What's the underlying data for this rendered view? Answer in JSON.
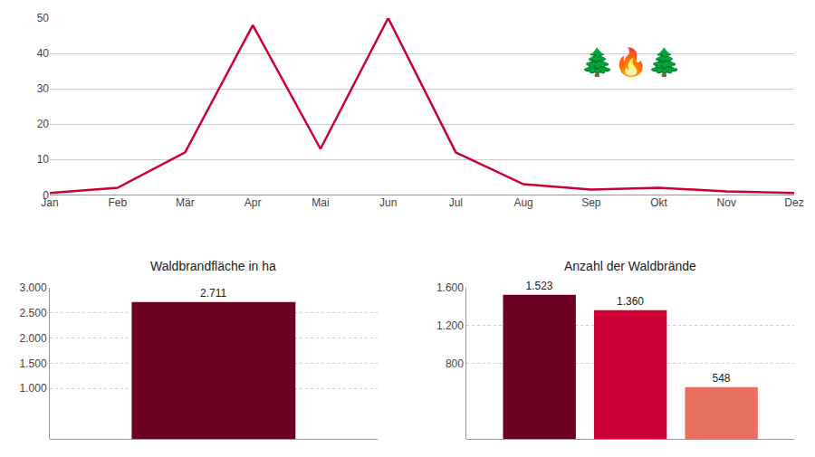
{
  "chart_data": [
    {
      "type": "line",
      "categories": [
        "Jan",
        "Feb",
        "Mär",
        "Apr",
        "Mai",
        "Jun",
        "Jul",
        "Aug",
        "Sep",
        "Okt",
        "Nov",
        "Dez"
      ],
      "values": [
        0.5,
        2,
        12,
        48,
        13,
        50,
        12,
        3,
        1.5,
        2,
        1,
        0.5
      ],
      "color": "#cc0033",
      "ylim": [
        0,
        50
      ],
      "yticks": [
        0,
        10,
        20,
        30,
        40,
        50
      ],
      "grid": true,
      "annotations": [
        "🌲🔥🌲"
      ]
    },
    {
      "type": "bar",
      "title": "Waldbrandfläche in ha",
      "categories": [
        null
      ],
      "values": [
        2711
      ],
      "value_labels": [
        "2.711"
      ],
      "color": "#6b0020",
      "ylim": [
        0,
        3000
      ],
      "yticks": [
        {
          "value": 1000,
          "label": "1.000"
        },
        {
          "value": 1500,
          "label": "1.500"
        },
        {
          "value": 2000,
          "label": "2.000"
        },
        {
          "value": 2500,
          "label": "2.500"
        },
        {
          "value": 3000,
          "label": "3.000"
        }
      ],
      "grid": true,
      "data_labels": true,
      "tick_labels": "y"
    },
    {
      "type": "bar",
      "title": "Anzahl der Waldbrände",
      "categories": [
        null,
        null,
        null
      ],
      "values": [
        1523,
        1360,
        548
      ],
      "value_labels": [
        "1.523",
        "1.360",
        "548"
      ],
      "colors": [
        "#6b0020",
        "#cc0033",
        "#e87060"
      ],
      "ylim": [
        0,
        1600
      ],
      "yticks": [
        800,
        {
          "value": 1200,
          "label": "1.200"
        },
        {
          "value": 1600,
          "label": "1.600"
        }
      ],
      "grid": true,
      "data_labels": true,
      "tick_labels": "y"
    }
  ]
}
